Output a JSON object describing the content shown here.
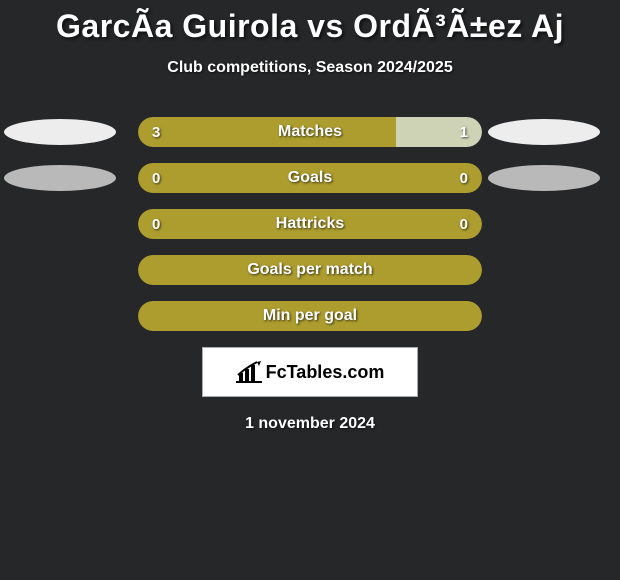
{
  "title": "GarcÃa Guirola vs OrdÃ³Ã±ez Aj",
  "subtitle": "Club competitions, Season 2024/2025",
  "date": "1 november 2024",
  "logo_text": "FcTables.com",
  "colors": {
    "background": "#262729",
    "bar_primary": "#ad9d2f",
    "bar_secondary": "#cfd3b6",
    "ellipse_white": "#ededed",
    "ellipse_gray": "#b9b9b9",
    "text": "#ffffff"
  },
  "rows": [
    {
      "metric": "Matches",
      "left_value": "3",
      "right_value": "1",
      "left_pct": 75,
      "right_pct": 25,
      "left_color": "#ad9d2f",
      "right_color": "#cfd3b6",
      "left_ellipse": "#ededed",
      "right_ellipse": "#ededed",
      "show_ellipses": true
    },
    {
      "metric": "Goals",
      "left_value": "0",
      "right_value": "0",
      "left_pct": 100,
      "right_pct": 0,
      "left_color": "#ad9d2f",
      "right_color": "#ad9d2f",
      "left_ellipse": "#b9b9b9",
      "right_ellipse": "#b9b9b9",
      "show_ellipses": true
    },
    {
      "metric": "Hattricks",
      "left_value": "0",
      "right_value": "0",
      "left_pct": 100,
      "right_pct": 0,
      "left_color": "#ad9d2f",
      "right_color": "#ad9d2f",
      "show_ellipses": false
    },
    {
      "metric": "Goals per match",
      "left_value": "",
      "right_value": "",
      "left_pct": 100,
      "right_pct": 0,
      "left_color": "#ad9d2f",
      "right_color": "#ad9d2f",
      "show_ellipses": false
    },
    {
      "metric": "Min per goal",
      "left_value": "",
      "right_value": "",
      "left_pct": 100,
      "right_pct": 0,
      "left_color": "#ad9d2f",
      "right_color": "#ad9d2f",
      "show_ellipses": false
    }
  ]
}
